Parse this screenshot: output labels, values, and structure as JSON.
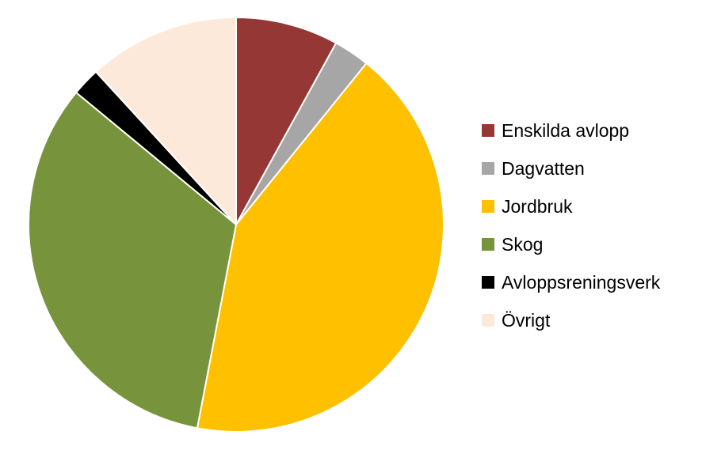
{
  "chart_data": {
    "type": "pie",
    "title": "",
    "legend_position": "right",
    "start_angle_deg": 0,
    "direction": "clockwise",
    "slices": [
      {
        "label": "Enskilda avlopp",
        "value": 8.0,
        "color": "#953735"
      },
      {
        "label": "Dagvatten",
        "value": 2.8,
        "color": "#A6A6A6"
      },
      {
        "label": "Jordbruk",
        "value": 42.2,
        "color": "#FFC000"
      },
      {
        "label": "Skog",
        "value": 33.0,
        "color": "#77933C"
      },
      {
        "label": "Avloppsreningsverk",
        "value": 2.2,
        "color": "#000000"
      },
      {
        "label": "Övrigt",
        "value": 11.8,
        "color": "#FDE9D9"
      }
    ]
  }
}
